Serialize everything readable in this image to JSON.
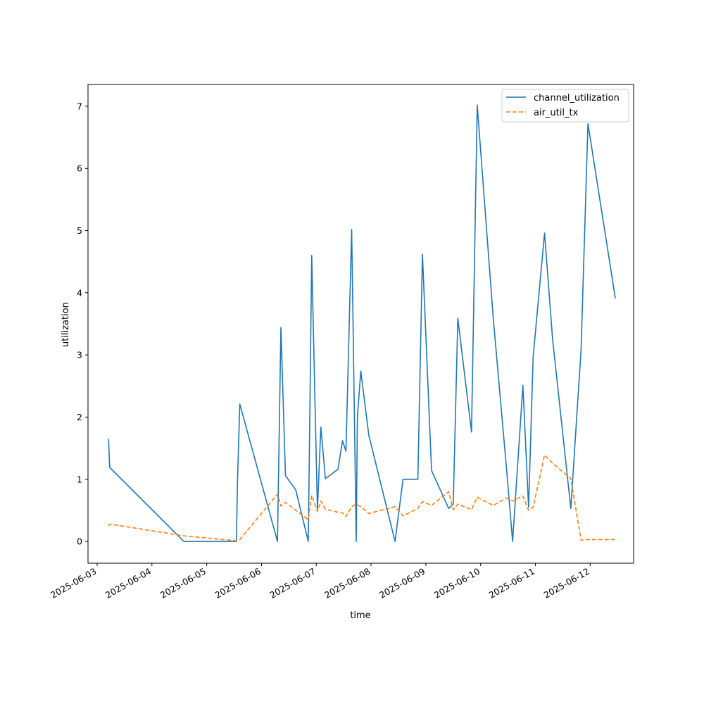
{
  "chart_data": {
    "type": "line",
    "title": "",
    "xlabel": "time",
    "ylabel": "utilization",
    "x_axis_type": "datetime",
    "xlim": [
      "2025-06-02T20:00",
      "2025-06-12T19:00"
    ],
    "ylim": [
      -0.35,
      7.35
    ],
    "x_ticks": [
      "2025-06-03",
      "2025-06-04",
      "2025-06-05",
      "2025-06-06",
      "2025-06-07",
      "2025-06-08",
      "2025-06-09",
      "2025-06-10",
      "2025-06-11",
      "2025-06-12"
    ],
    "y_ticks": [
      0,
      1,
      2,
      3,
      4,
      5,
      6,
      7
    ],
    "grid": false,
    "legend_position": "top-right",
    "series": [
      {
        "name": "channel_utilization",
        "color": "#1f77b4",
        "dash": "solid",
        "points": [
          [
            "2025-06-03T05:00",
            1.65
          ],
          [
            "2025-06-03T05:30",
            1.19
          ],
          [
            "2025-06-04T14:00",
            0.0
          ],
          [
            "2025-06-05T13:00",
            0.0
          ],
          [
            "2025-06-05T13:30",
            1.0
          ],
          [
            "2025-06-05T14:30",
            2.21
          ],
          [
            "2025-06-06T07:00",
            0.0
          ],
          [
            "2025-06-06T08:30",
            3.44
          ],
          [
            "2025-06-06T10:30",
            1.06
          ],
          [
            "2025-06-06T15:00",
            0.83
          ],
          [
            "2025-06-06T20:30",
            0.0
          ],
          [
            "2025-06-06T22:00",
            4.6
          ],
          [
            "2025-06-07T00:30",
            0.5
          ],
          [
            "2025-06-07T02:00",
            1.84
          ],
          [
            "2025-06-07T04:00",
            1.01
          ],
          [
            "2025-06-07T09:30",
            1.16
          ],
          [
            "2025-06-07T11:30",
            1.62
          ],
          [
            "2025-06-07T13:00",
            1.45
          ],
          [
            "2025-06-07T15:30",
            5.02
          ],
          [
            "2025-06-07T17:30",
            0.0
          ],
          [
            "2025-06-07T18:00",
            2.0
          ],
          [
            "2025-06-07T19:30",
            2.74
          ],
          [
            "2025-06-07T23:00",
            1.71
          ],
          [
            "2025-06-08T10:30",
            0.0
          ],
          [
            "2025-06-08T14:00",
            1.0
          ],
          [
            "2025-06-08T20:30",
            1.0
          ],
          [
            "2025-06-08T22:30",
            4.62
          ],
          [
            "2025-06-09T02:30",
            1.14
          ],
          [
            "2025-06-09T10:00",
            0.53
          ],
          [
            "2025-06-09T12:00",
            0.6
          ],
          [
            "2025-06-09T14:00",
            3.59
          ],
          [
            "2025-06-09T20:00",
            1.76
          ],
          [
            "2025-06-09T22:30",
            7.02
          ],
          [
            "2025-06-10T05:30",
            3.6
          ],
          [
            "2025-06-10T11:30",
            1.1
          ],
          [
            "2025-06-10T14:00",
            0.0
          ],
          [
            "2025-06-10T18:30",
            2.51
          ],
          [
            "2025-06-10T21:00",
            0.55
          ],
          [
            "2025-06-10T23:00",
            2.97
          ],
          [
            "2025-06-11T04:00",
            4.96
          ],
          [
            "2025-06-11T07:30",
            3.26
          ],
          [
            "2025-06-11T15:30",
            0.53
          ],
          [
            "2025-06-11T20:00",
            3.09
          ],
          [
            "2025-06-11T23:00",
            6.72
          ],
          [
            "2025-06-12T11:00",
            3.91
          ]
        ]
      },
      {
        "name": "air_util_tx",
        "color": "#ff7f0e",
        "dash": "dashed",
        "points": [
          [
            "2025-06-03T05:00",
            0.25
          ],
          [
            "2025-06-03T05:30",
            0.28
          ],
          [
            "2025-06-04T14:00",
            0.09
          ],
          [
            "2025-06-05T13:00",
            0.01
          ],
          [
            "2025-06-05T14:30",
            0.03
          ],
          [
            "2025-06-06T07:00",
            0.76
          ],
          [
            "2025-06-06T08:30",
            0.57
          ],
          [
            "2025-06-06T10:30",
            0.63
          ],
          [
            "2025-06-06T20:30",
            0.35
          ],
          [
            "2025-06-06T22:00",
            0.74
          ],
          [
            "2025-06-07T00:30",
            0.48
          ],
          [
            "2025-06-07T02:00",
            0.65
          ],
          [
            "2025-06-07T04:00",
            0.52
          ],
          [
            "2025-06-07T09:30",
            0.47
          ],
          [
            "2025-06-07T11:30",
            0.46
          ],
          [
            "2025-06-07T13:00",
            0.4
          ],
          [
            "2025-06-07T15:30",
            0.56
          ],
          [
            "2025-06-07T17:30",
            0.6
          ],
          [
            "2025-06-07T19:30",
            0.56
          ],
          [
            "2025-06-07T23:00",
            0.45
          ],
          [
            "2025-06-08T10:30",
            0.56
          ],
          [
            "2025-06-08T14:00",
            0.41
          ],
          [
            "2025-06-08T20:30",
            0.53
          ],
          [
            "2025-06-08T22:30",
            0.64
          ],
          [
            "2025-06-09T02:30",
            0.58
          ],
          [
            "2025-06-09T10:00",
            0.8
          ],
          [
            "2025-06-09T12:00",
            0.51
          ],
          [
            "2025-06-09T14:00",
            0.6
          ],
          [
            "2025-06-09T20:00",
            0.51
          ],
          [
            "2025-06-09T22:30",
            0.71
          ],
          [
            "2025-06-10T05:30",
            0.58
          ],
          [
            "2025-06-10T11:30",
            0.7
          ],
          [
            "2025-06-10T14:00",
            0.65
          ],
          [
            "2025-06-10T18:30",
            0.73
          ],
          [
            "2025-06-10T21:00",
            0.5
          ],
          [
            "2025-06-10T23:00",
            0.55
          ],
          [
            "2025-06-11T04:00",
            1.39
          ],
          [
            "2025-06-11T07:30",
            1.26
          ],
          [
            "2025-06-11T15:30",
            1.01
          ],
          [
            "2025-06-11T20:00",
            0.02
          ],
          [
            "2025-06-11T23:00",
            0.03
          ],
          [
            "2025-06-12T11:00",
            0.03
          ]
        ]
      }
    ]
  }
}
